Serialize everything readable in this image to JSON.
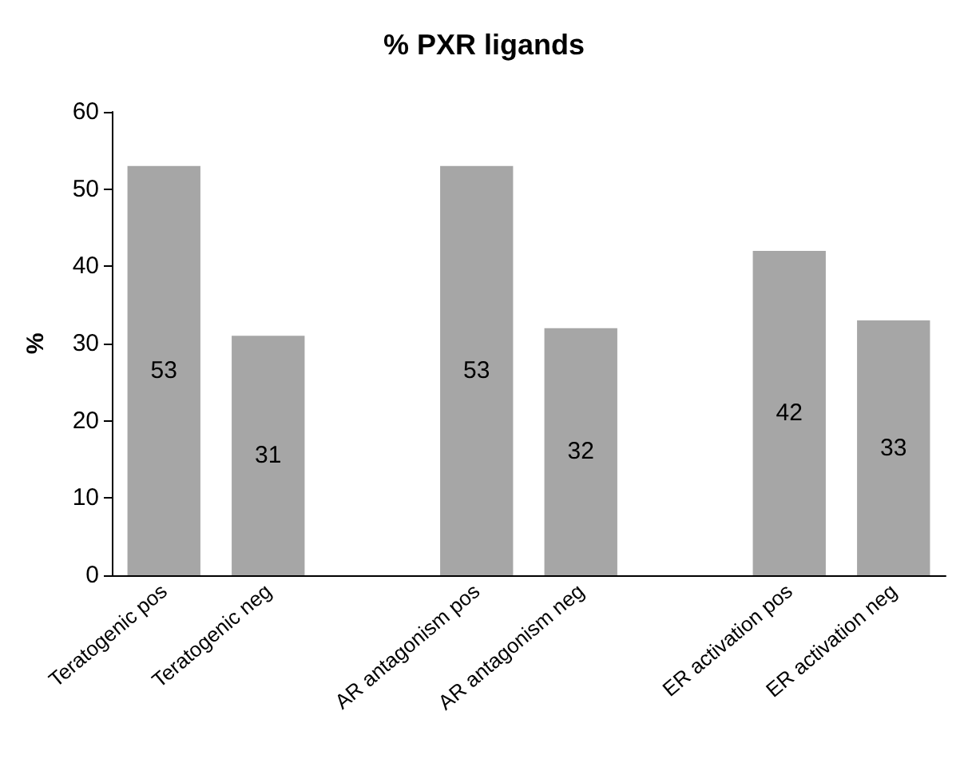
{
  "chart_data": {
    "type": "bar",
    "title": "% PXR ligands",
    "ylabel": "%",
    "categories": [
      "Teratogenic pos",
      "Teratogenic neg",
      null,
      "AR antagonism pos",
      "AR antagonism neg",
      null,
      "ER activation pos",
      "ER activation neg"
    ],
    "values": [
      53,
      31,
      null,
      53,
      32,
      null,
      42,
      33
    ],
    "color": "#a6a6a6",
    "data_labels": true,
    "ylim": [
      0,
      60
    ],
    "yticks": [
      0,
      10,
      20,
      30,
      40,
      50,
      60
    ],
    "grid": false
  }
}
